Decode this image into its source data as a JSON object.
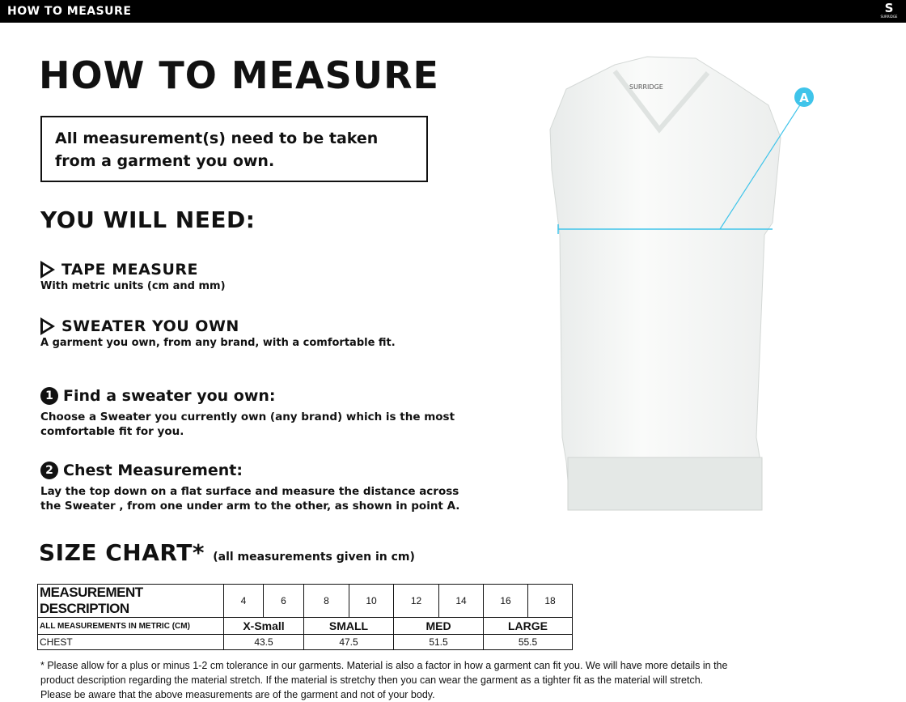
{
  "header": {
    "title": "HOW TO MEASURE",
    "logo_text": "SURRIDGE"
  },
  "main": {
    "title": "HOW TO MEASURE",
    "notice": "All measurement(s) need to be taken from a garment you own.",
    "need_heading": "YOU WILL NEED:",
    "needs": [
      {
        "title": "TAPE MEASURE",
        "desc": "With metric units (cm and mm)"
      },
      {
        "title": "SWEATER YOU OWN",
        "desc": "A garment you own, from any brand, with a comfortable fit."
      }
    ],
    "steps": [
      {
        "num": "1",
        "title": "Find a sweater you own:",
        "desc": "Choose a Sweater you currently own (any brand) which is the most comfortable fit for you."
      },
      {
        "num": "2",
        "title": "Chest Measurement:",
        "desc": "Lay the top down on a flat surface and measure the distance across the Sweater , from one under arm to the other, as shown in point A."
      }
    ],
    "point_label": "A",
    "garment_label": "SURRIDGE"
  },
  "size_chart": {
    "title": "SIZE CHART*",
    "subtitle": "(all measurements given in cm)",
    "header_label": "MEASUREMENT DESCRIPTION",
    "ages": [
      "4",
      "6",
      "8",
      "10",
      "12",
      "14",
      "16",
      "18"
    ],
    "metric_label": "ALL MEASUREMENTS IN METRIC (CM)",
    "sizes": [
      "X-Small",
      "SMALL",
      "MED",
      "LARGE"
    ],
    "row_label": "CHEST",
    "chest": [
      "43.5",
      "47.5",
      "51.5",
      "55.5"
    ]
  },
  "footnote": "* Please allow for a plus or minus 1-2 cm tolerance in our garments. Material is also a factor in how a garment can fit you. We will have more details in the product description regarding the material stretch.  If the material is stretchy then you can wear the garment as a tighter fit as the material will stretch.  Please be aware that the above measurements are of the garment and not of your body.",
  "colors": {
    "accent": "#3fc4ea",
    "topbar": "#000000"
  }
}
